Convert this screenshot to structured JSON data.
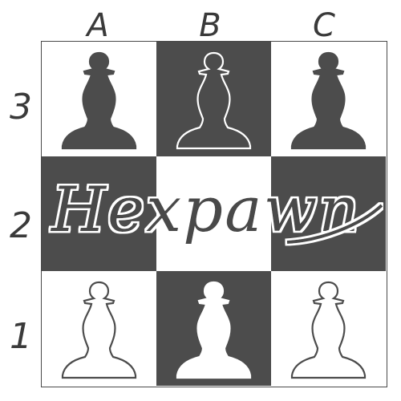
{
  "title": "Hexpawn",
  "columns": [
    "A",
    "B",
    "C"
  ],
  "rows": [
    "3",
    "2",
    "1"
  ],
  "colors": {
    "dark_square": "#4c4c4c",
    "light_square": "#ffffff",
    "ink": "#3a3a3a"
  },
  "board": [
    [
      {
        "square": "A3",
        "shade": "light",
        "piece": "pawn",
        "piece_color": "black"
      },
      {
        "square": "B3",
        "shade": "dark",
        "piece": "pawn",
        "piece_color": "black"
      },
      {
        "square": "C3",
        "shade": "light",
        "piece": "pawn",
        "piece_color": "black"
      }
    ],
    [
      {
        "square": "A2",
        "shade": "dark",
        "piece": "",
        "piece_color": ""
      },
      {
        "square": "B2",
        "shade": "light",
        "piece": "",
        "piece_color": ""
      },
      {
        "square": "C2",
        "shade": "dark",
        "piece": "",
        "piece_color": ""
      }
    ],
    [
      {
        "square": "A1",
        "shade": "light",
        "piece": "pawn",
        "piece_color": "white"
      },
      {
        "square": "B1",
        "shade": "dark",
        "piece": "pawn",
        "piece_color": "white"
      },
      {
        "square": "C1",
        "shade": "light",
        "piece": "pawn",
        "piece_color": "white"
      }
    ]
  ]
}
